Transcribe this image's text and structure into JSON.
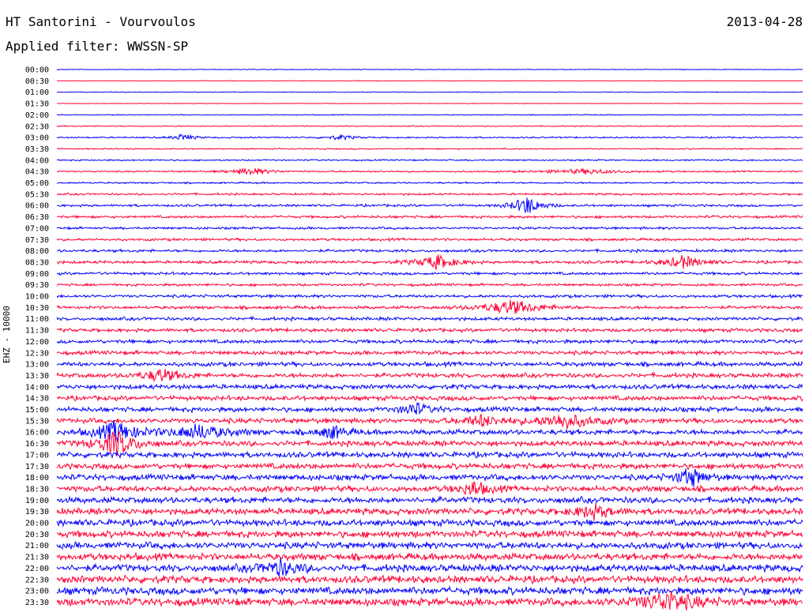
{
  "header": {
    "station": "HT Santorini - Vourvoulos",
    "date": "2013-04-28",
    "filter": "Applied filter: WWSSN-SP"
  },
  "chart_data": {
    "type": "line",
    "title": "HT Santorini - Vourvoulos",
    "ylabel": "EHZ - 10000",
    "row_labels": [
      "00:00",
      "00:30",
      "01:00",
      "01:30",
      "02:00",
      "02:30",
      "03:00",
      "03:30",
      "04:00",
      "04:30",
      "05:00",
      "05:30",
      "06:00",
      "06:30",
      "07:00",
      "07:30",
      "08:00",
      "08:30",
      "09:00",
      "09:30",
      "10:00",
      "10:30",
      "11:00",
      "11:30",
      "12:00",
      "12:30",
      "13:00",
      "13:30",
      "14:00",
      "14:30",
      "15:00",
      "15:30",
      "16:00",
      "16:30",
      "17:00",
      "17:30",
      "18:00",
      "18:30",
      "19:00",
      "19:30",
      "20:00",
      "20:30",
      "21:00",
      "21:30",
      "22:00",
      "22:30",
      "23:00",
      "23:30"
    ],
    "series_colors": [
      "#0000ff",
      "#ff0033"
    ],
    "noise_level": [
      0.4,
      0.3,
      0.4,
      0.3,
      0.5,
      0.6,
      0.8,
      0.7,
      0.8,
      0.9,
      0.9,
      1.1,
      1.3,
      1.4,
      1.3,
      1.4,
      1.5,
      1.6,
      1.5,
      1.4,
      1.6,
      1.7,
      1.8,
      1.9,
      2.0,
      2.1,
      2.3,
      2.4,
      2.5,
      2.5,
      2.6,
      2.7,
      2.8,
      2.9,
      3.0,
      3.0,
      3.1,
      3.2,
      3.3,
      3.4,
      3.5,
      3.6,
      3.6,
      3.7,
      3.8,
      3.9,
      4.0,
      4.1
    ],
    "events": [
      {
        "row": 6,
        "x_frac": 0.17,
        "amp": 5,
        "width": 0.01
      },
      {
        "row": 6,
        "x_frac": 0.38,
        "amp": 3,
        "width": 0.015
      },
      {
        "row": 9,
        "x_frac": 0.26,
        "amp": 5,
        "width": 0.02
      },
      {
        "row": 9,
        "x_frac": 0.71,
        "amp": 3,
        "width": 0.04
      },
      {
        "row": 12,
        "x_frac": 0.63,
        "amp": 12,
        "width": 0.015
      },
      {
        "row": 17,
        "x_frac": 0.51,
        "amp": 9,
        "width": 0.02
      },
      {
        "row": 17,
        "x_frac": 0.84,
        "amp": 8,
        "width": 0.02
      },
      {
        "row": 21,
        "x_frac": 0.61,
        "amp": 9,
        "width": 0.03
      },
      {
        "row": 27,
        "x_frac": 0.14,
        "amp": 8,
        "width": 0.02
      },
      {
        "row": 30,
        "x_frac": 0.48,
        "amp": 8,
        "width": 0.015
      },
      {
        "row": 31,
        "x_frac": 0.57,
        "amp": 7,
        "width": 0.02
      },
      {
        "row": 31,
        "x_frac": 0.68,
        "amp": 9,
        "width": 0.03
      },
      {
        "row": 32,
        "x_frac": 0.08,
        "amp": 14,
        "width": 0.02
      },
      {
        "row": 32,
        "x_frac": 0.19,
        "amp": 9,
        "width": 0.03
      },
      {
        "row": 32,
        "x_frac": 0.37,
        "amp": 8,
        "width": 0.015
      },
      {
        "row": 33,
        "x_frac": 0.08,
        "amp": 16,
        "width": 0.02
      },
      {
        "row": 36,
        "x_frac": 0.85,
        "amp": 12,
        "width": 0.015
      },
      {
        "row": 37,
        "x_frac": 0.56,
        "amp": 9,
        "width": 0.015
      },
      {
        "row": 39,
        "x_frac": 0.72,
        "amp": 8,
        "width": 0.02
      },
      {
        "row": 44,
        "x_frac": 0.3,
        "amp": 9,
        "width": 0.02
      },
      {
        "row": 47,
        "x_frac": 0.82,
        "amp": 12,
        "width": 0.03
      }
    ]
  }
}
